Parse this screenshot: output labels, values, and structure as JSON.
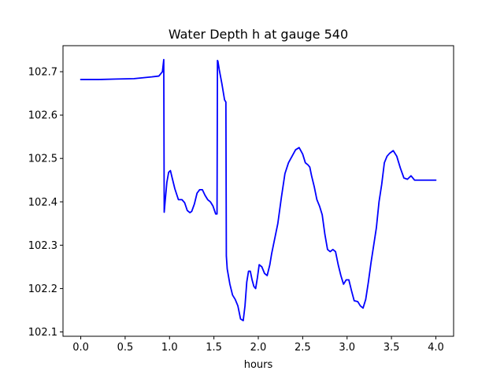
{
  "chart_data": {
    "type": "line",
    "title": "Water Depth h at gauge 540",
    "xlabel": "hours",
    "ylabel": "",
    "xlim": [
      -0.2,
      4.2
    ],
    "ylim": [
      102.09,
      102.76
    ],
    "grid": false,
    "x_ticks": [
      0.0,
      0.5,
      1.0,
      1.5,
      2.0,
      2.5,
      3.0,
      3.5,
      4.0
    ],
    "x_tick_labels": [
      "0.0",
      "0.5",
      "1.0",
      "1.5",
      "2.0",
      "2.5",
      "3.0",
      "3.5",
      "4.0"
    ],
    "y_ticks": [
      102.1,
      102.2,
      102.3,
      102.4,
      102.5,
      102.6,
      102.7
    ],
    "y_tick_labels": [
      "102.1",
      "102.2",
      "102.3",
      "102.4",
      "102.5",
      "102.6",
      "102.7"
    ],
    "series": [
      {
        "color": "#0000ff",
        "x": [
          0.0,
          0.2,
          0.4,
          0.6,
          0.7,
          0.8,
          0.88,
          0.92,
          0.935,
          0.94,
          0.95,
          0.97,
          0.99,
          1.01,
          1.03,
          1.06,
          1.1,
          1.14,
          1.17,
          1.2,
          1.23,
          1.25,
          1.28,
          1.31,
          1.34,
          1.37,
          1.4,
          1.43,
          1.46,
          1.49,
          1.52,
          1.535,
          1.54,
          1.545,
          1.56,
          1.59,
          1.62,
          1.635,
          1.64,
          1.65,
          1.68,
          1.71,
          1.74,
          1.77,
          1.8,
          1.83,
          1.85,
          1.87,
          1.89,
          1.91,
          1.93,
          1.95,
          1.97,
          1.99,
          2.01,
          2.04,
          2.07,
          2.1,
          2.13,
          2.15,
          2.17,
          2.19,
          2.22,
          2.26,
          2.3,
          2.34,
          2.38,
          2.42,
          2.46,
          2.5,
          2.53,
          2.56,
          2.58,
          2.6,
          2.63,
          2.66,
          2.69,
          2.72,
          2.75,
          2.78,
          2.81,
          2.84,
          2.87,
          2.9,
          2.93,
          2.96,
          2.99,
          3.02,
          3.05,
          3.08,
          3.12,
          3.15,
          3.18,
          3.21,
          3.24,
          3.27,
          3.3,
          3.33,
          3.36,
          3.39,
          3.42,
          3.45,
          3.48,
          3.52,
          3.56,
          3.6,
          3.64,
          3.68,
          3.72,
          3.76,
          3.8,
          3.83,
          3.86,
          3.89,
          3.92,
          3.95,
          3.98,
          4.0
        ],
        "y": [
          102.682,
          102.682,
          102.683,
          102.684,
          102.686,
          102.688,
          102.69,
          102.7,
          102.728,
          102.376,
          102.4,
          102.445,
          102.468,
          102.472,
          102.455,
          102.43,
          102.405,
          102.405,
          102.398,
          102.38,
          102.375,
          102.378,
          102.395,
          102.42,
          102.428,
          102.428,
          102.415,
          102.405,
          102.4,
          102.39,
          102.372,
          102.372,
          102.726,
          102.724,
          102.705,
          102.672,
          102.635,
          102.63,
          102.275,
          102.245,
          102.21,
          102.185,
          102.175,
          102.16,
          102.13,
          102.126,
          102.16,
          102.215,
          102.24,
          102.24,
          102.22,
          102.205,
          102.2,
          102.225,
          102.255,
          102.25,
          102.235,
          102.23,
          102.255,
          102.28,
          102.3,
          102.32,
          102.35,
          102.41,
          102.465,
          102.49,
          102.505,
          102.52,
          102.525,
          102.51,
          102.49,
          102.485,
          102.48,
          102.46,
          102.435,
          102.405,
          102.39,
          102.37,
          102.325,
          102.29,
          102.285,
          102.29,
          102.285,
          102.255,
          102.23,
          102.21,
          102.22,
          102.22,
          102.195,
          102.172,
          102.17,
          102.16,
          102.155,
          102.175,
          102.215,
          102.26,
          102.3,
          102.34,
          102.4,
          102.44,
          102.49,
          102.505,
          102.512,
          102.518,
          102.505,
          102.478,
          102.455,
          102.452,
          102.46,
          102.45,
          102.45,
          102.45,
          102.45,
          102.45,
          102.45,
          102.45,
          102.45,
          102.45
        ]
      }
    ]
  }
}
